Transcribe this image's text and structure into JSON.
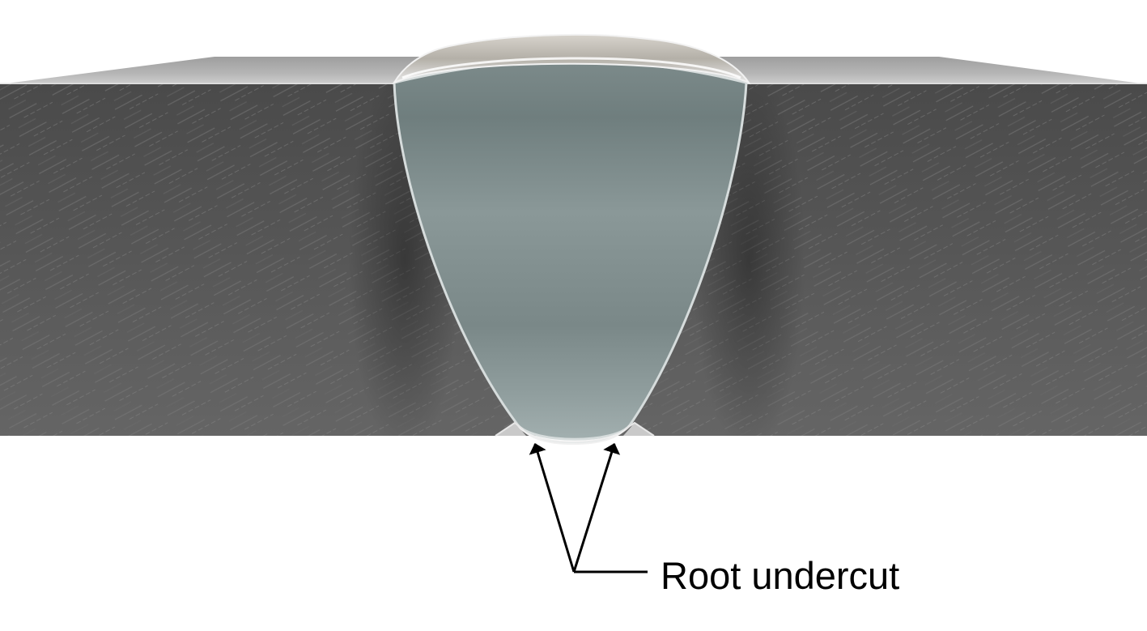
{
  "diagram": {
    "callout_label": "Root undercut"
  },
  "colors": {
    "background": "#ffffff",
    "plate_face": "#5a5a5a",
    "plate_top": "#b8b8b8",
    "weld_metal": "#8a9898",
    "label_and_leaders": "#000000"
  }
}
